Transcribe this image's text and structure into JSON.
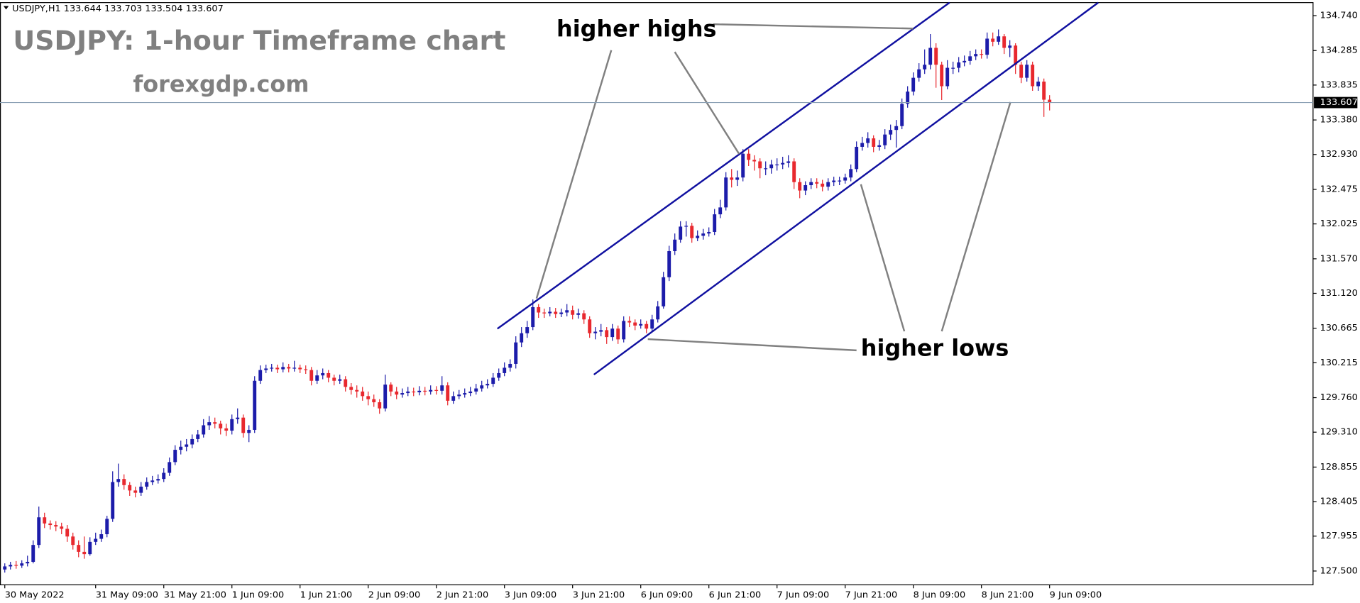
{
  "chart_data": {
    "type": "candlestick",
    "symbol": "USDJPY,H1",
    "title": "USDJPY: 1-hour Timeframe chart",
    "subtitle": "forexgdp.com",
    "annotations": [
      "higher highs",
      "higher lows"
    ],
    "up_color": "#1c1caa",
    "down_color": "#e8282e",
    "ylim": [
      127.32,
      134.91
    ],
    "yticks": [
      {
        "value": 134.74,
        "label": "134.740"
      },
      134.285,
      133.835,
      {
        "value": 133.38,
        "label": "133.380"
      },
      {
        "value": 132.93,
        "label": "132.930"
      },
      132.475,
      132.025,
      {
        "value": 131.57,
        "label": "131.570"
      },
      {
        "value": 131.12,
        "label": "131.120"
      },
      130.665,
      130.215,
      {
        "value": 129.76,
        "label": "129.760"
      },
      {
        "value": 129.31,
        "label": "129.310"
      },
      128.855,
      128.405,
      127.955,
      {
        "value": 127.5,
        "label": "127.500"
      }
    ],
    "categories": [
      "30 May 2022",
      null,
      null,
      null,
      null,
      null,
      null,
      null,
      null,
      null,
      null,
      null,
      null,
      null,
      null,
      null,
      "31 May 09:00",
      null,
      null,
      null,
      null,
      null,
      null,
      null,
      null,
      null,
      null,
      null,
      "31 May 21:00",
      null,
      null,
      null,
      null,
      null,
      null,
      null,
      null,
      null,
      null,
      null,
      "1 Jun 09:00",
      null,
      null,
      null,
      null,
      null,
      null,
      null,
      null,
      null,
      null,
      null,
      "1 Jun 21:00",
      null,
      null,
      null,
      null,
      null,
      null,
      null,
      null,
      null,
      null,
      null,
      "2 Jun 09:00",
      null,
      null,
      null,
      null,
      null,
      null,
      null,
      null,
      null,
      null,
      null,
      "2 Jun 21:00",
      null,
      null,
      null,
      null,
      null,
      null,
      null,
      null,
      null,
      null,
      null,
      "3 Jun 09:00",
      null,
      null,
      null,
      null,
      null,
      null,
      null,
      null,
      null,
      null,
      null,
      "3 Jun 21:00",
      null,
      null,
      null,
      null,
      null,
      null,
      null,
      null,
      null,
      null,
      null,
      "6 Jun 09:00",
      null,
      null,
      null,
      null,
      null,
      null,
      null,
      null,
      null,
      null,
      null,
      "6 Jun 21:00",
      null,
      null,
      null,
      null,
      null,
      null,
      null,
      null,
      null,
      null,
      null,
      "7 Jun 09:00",
      null,
      null,
      null,
      null,
      null,
      null,
      null,
      null,
      null,
      null,
      null,
      "7 Jun 21:00",
      null,
      null,
      null,
      null,
      null,
      null,
      null,
      null,
      null,
      null,
      null,
      "8 Jun 09:00",
      null,
      null,
      null,
      null,
      null,
      null,
      null,
      null,
      null,
      null,
      null,
      "8 Jun 21:00",
      null,
      null,
      null,
      null,
      null,
      null,
      null,
      null,
      null,
      null,
      null,
      "9 Jun 09:00"
    ],
    "open": [
      127.52,
      127.56,
      127.58,
      127.57,
      127.6,
      127.62,
      127.84,
      128.2,
      128.12,
      128.1,
      128.08,
      128.05,
      127.95,
      127.84,
      127.75,
      127.72,
      127.88,
      127.92,
      127.98,
      128.18,
      128.66,
      128.7,
      128.62,
      128.55,
      128.52,
      128.6,
      128.66,
      128.68,
      128.7,
      128.78,
      128.92,
      129.08,
      129.12,
      129.15,
      129.22,
      129.28,
      129.4,
      129.44,
      129.42,
      129.36,
      129.33,
      129.48,
      129.5,
      129.3,
      129.34,
      129.98,
      130.12,
      130.14,
      130.15,
      130.13,
      130.16,
      130.14,
      130.15,
      130.13,
      130.12,
      129.98,
      130.05,
      130.08,
      130.02,
      129.98,
      130.0,
      129.9,
      129.86,
      129.84,
      129.78,
      129.74,
      129.7,
      129.62,
      129.93,
      129.84,
      129.8,
      129.82,
      129.84,
      129.83,
      129.85,
      129.84,
      129.86,
      129.85,
      129.92,
      129.72,
      129.78,
      129.8,
      129.82,
      129.84,
      129.88,
      129.92,
      129.94,
      130.02,
      130.08,
      130.15,
      130.2,
      130.48,
      130.6,
      130.68,
      130.94,
      130.87,
      130.86,
      130.88,
      130.85,
      130.87,
      130.9,
      130.84,
      130.86,
      130.78,
      130.6,
      130.62,
      130.64,
      130.55,
      130.66,
      130.52,
      130.76,
      130.74,
      130.7,
      130.72,
      130.66,
      130.78,
      130.95,
      131.33,
      131.67,
      131.82,
      131.99,
      132.0,
      131.84,
      131.87,
      131.9,
      131.92,
      132.15,
      132.24,
      132.63,
      132.6,
      132.63,
      132.94,
      132.86,
      132.84,
      132.75,
      132.75,
      132.8,
      132.8,
      132.82,
      132.84,
      132.57,
      132.46,
      132.53,
      132.57,
      132.55,
      132.51,
      132.57,
      132.59,
      132.59,
      132.63,
      132.74,
      133.03,
      133.08,
      133.14,
      133.03,
      133.05,
      133.19,
      133.25,
      133.3,
      133.59,
      133.75,
      133.93,
      134.04,
      134.1,
      134.32,
      134.1,
      133.82,
      134.06,
      134.06,
      134.13,
      134.15,
      134.21,
      134.24,
      134.23,
      134.44,
      134.4,
      134.47,
      134.32,
      134.35,
      134.1,
      133.93,
      134.1,
      133.82,
      133.88,
      133.644
    ],
    "high": [
      127.6,
      127.62,
      127.63,
      127.64,
      127.7,
      127.9,
      128.34,
      128.26,
      128.16,
      128.15,
      128.13,
      128.1,
      128.0,
      127.9,
      127.95,
      127.94,
      128.0,
      128.04,
      128.22,
      128.8,
      128.9,
      128.76,
      128.66,
      128.6,
      128.66,
      128.72,
      128.74,
      128.76,
      128.84,
      128.98,
      129.14,
      129.2,
      129.22,
      129.28,
      129.34,
      129.48,
      129.52,
      129.5,
      129.46,
      129.42,
      129.54,
      129.62,
      129.54,
      129.4,
      130.04,
      130.18,
      130.19,
      130.2,
      130.19,
      130.22,
      130.2,
      130.24,
      130.19,
      130.18,
      130.16,
      130.12,
      130.14,
      130.12,
      130.06,
      130.06,
      130.04,
      129.95,
      129.92,
      129.9,
      129.84,
      129.8,
      129.74,
      130.06,
      129.96,
      129.9,
      129.88,
      129.9,
      129.89,
      129.91,
      129.9,
      129.92,
      129.91,
      130.04,
      129.96,
      129.84,
      129.86,
      129.88,
      129.9,
      129.94,
      129.98,
      130.0,
      130.08,
      130.14,
      130.22,
      130.26,
      130.56,
      130.68,
      130.76,
      131.04,
      130.98,
      130.92,
      130.94,
      130.93,
      130.92,
      130.98,
      130.96,
      130.92,
      130.9,
      130.82,
      130.68,
      130.72,
      130.68,
      130.72,
      130.7,
      130.82,
      130.82,
      130.78,
      130.78,
      130.76,
      130.84,
      131.02,
      131.4,
      131.74,
      131.9,
      132.06,
      132.06,
      132.04,
      131.94,
      131.96,
      131.98,
      132.22,
      132.34,
      132.7,
      132.74,
      132.72,
      133.0,
      133.0,
      132.92,
      132.88,
      132.84,
      132.86,
      132.88,
      132.9,
      132.92,
      132.88,
      132.62,
      132.58,
      132.62,
      132.62,
      132.6,
      132.62,
      132.64,
      132.64,
      132.68,
      132.8,
      133.1,
      133.16,
      133.22,
      133.18,
      133.12,
      133.26,
      133.32,
      133.38,
      133.66,
      133.82,
      134.0,
      134.12,
      134.3,
      134.5,
      134.38,
      134.14,
      134.16,
      134.14,
      134.2,
      134.22,
      134.28,
      134.3,
      134.3,
      134.52,
      134.52,
      134.56,
      134.5,
      134.42,
      134.38,
      134.14,
      134.16,
      134.14,
      133.94,
      133.92,
      133.703
    ],
    "low": [
      127.48,
      127.52,
      127.53,
      127.54,
      127.56,
      127.6,
      127.8,
      128.06,
      128.04,
      128.02,
      127.98,
      127.88,
      127.78,
      127.68,
      127.66,
      127.7,
      127.84,
      127.88,
      127.94,
      128.14,
      128.6,
      128.56,
      128.48,
      128.46,
      128.48,
      128.56,
      128.62,
      128.64,
      128.66,
      128.74,
      128.88,
      129.02,
      129.06,
      129.1,
      129.18,
      129.24,
      129.34,
      129.36,
      129.28,
      129.26,
      129.28,
      129.42,
      129.24,
      129.18,
      129.3,
      129.94,
      130.08,
      130.1,
      130.08,
      130.09,
      130.09,
      130.1,
      130.08,
      130.07,
      129.92,
      129.94,
      130.0,
      129.96,
      129.92,
      129.94,
      129.84,
      129.8,
      129.76,
      129.72,
      129.66,
      129.64,
      129.55,
      129.58,
      129.78,
      129.74,
      129.76,
      129.78,
      129.78,
      129.79,
      129.79,
      129.8,
      129.8,
      129.8,
      129.66,
      129.68,
      129.74,
      129.76,
      129.78,
      129.8,
      129.84,
      129.88,
      129.9,
      129.98,
      130.04,
      130.1,
      130.14,
      130.42,
      130.54,
      130.64,
      130.8,
      130.8,
      130.82,
      130.8,
      130.81,
      130.82,
      130.78,
      130.79,
      130.72,
      130.54,
      130.52,
      130.56,
      130.46,
      130.5,
      130.46,
      130.48,
      130.68,
      130.64,
      130.66,
      130.6,
      130.62,
      130.74,
      130.92,
      131.28,
      131.62,
      131.78,
      131.86,
      131.78,
      131.8,
      131.82,
      131.86,
      131.88,
      132.1,
      132.2,
      132.5,
      132.52,
      132.58,
      132.78,
      132.72,
      132.62,
      132.66,
      132.68,
      132.72,
      132.74,
      132.76,
      132.48,
      132.36,
      132.4,
      132.48,
      132.49,
      132.45,
      132.46,
      132.52,
      132.53,
      132.55,
      132.58,
      132.7,
      132.98,
      133.02,
      132.96,
      132.98,
      133.0,
      133.12,
      133.02,
      133.26,
      133.54,
      133.7,
      133.88,
      133.98,
      134.04,
      133.8,
      133.64,
      133.78,
      133.98,
      134.0,
      134.08,
      134.1,
      134.16,
      134.18,
      134.18,
      134.34,
      134.36,
      134.24,
      134.2,
      133.98,
      133.86,
      133.88,
      133.76,
      133.76,
      133.42,
      133.504
    ],
    "close": [
      127.56,
      127.58,
      127.57,
      127.6,
      127.62,
      127.84,
      128.2,
      128.12,
      128.1,
      128.08,
      128.05,
      127.95,
      127.84,
      127.75,
      127.72,
      127.88,
      127.92,
      127.98,
      128.18,
      128.66,
      128.7,
      128.62,
      128.55,
      128.52,
      128.6,
      128.66,
      128.68,
      128.7,
      128.78,
      128.92,
      129.08,
      129.12,
      129.15,
      129.22,
      129.28,
      129.4,
      129.44,
      129.42,
      129.36,
      129.33,
      129.48,
      129.5,
      129.3,
      129.34,
      129.98,
      130.12,
      130.14,
      130.15,
      130.13,
      130.16,
      130.14,
      130.15,
      130.13,
      130.12,
      129.98,
      130.05,
      130.08,
      130.02,
      129.98,
      130.0,
      129.9,
      129.86,
      129.84,
      129.78,
      129.74,
      129.7,
      129.62,
      129.93,
      129.84,
      129.8,
      129.82,
      129.84,
      129.83,
      129.85,
      129.84,
      129.86,
      129.85,
      129.92,
      129.72,
      129.78,
      129.8,
      129.82,
      129.84,
      129.88,
      129.92,
      129.94,
      130.02,
      130.08,
      130.15,
      130.2,
      130.48,
      130.6,
      130.68,
      130.94,
      130.87,
      130.86,
      130.88,
      130.85,
      130.87,
      130.9,
      130.84,
      130.86,
      130.78,
      130.6,
      130.62,
      130.64,
      130.55,
      130.66,
      130.52,
      130.76,
      130.74,
      130.7,
      130.72,
      130.66,
      130.78,
      130.95,
      131.33,
      131.67,
      131.82,
      131.99,
      132.0,
      131.84,
      131.87,
      131.9,
      131.92,
      132.15,
      132.24,
      132.63,
      132.6,
      132.63,
      132.94,
      132.86,
      132.84,
      132.75,
      132.75,
      132.8,
      132.8,
      132.82,
      132.84,
      132.57,
      132.46,
      132.53,
      132.57,
      132.55,
      132.51,
      132.57,
      132.59,
      132.59,
      132.63,
      132.74,
      133.03,
      133.08,
      133.14,
      133.03,
      133.05,
      133.19,
      133.25,
      133.3,
      133.59,
      133.75,
      133.93,
      134.04,
      134.1,
      134.32,
      134.1,
      133.82,
      134.06,
      134.06,
      134.13,
      134.15,
      134.21,
      134.24,
      134.23,
      134.44,
      134.4,
      134.47,
      134.32,
      134.35,
      134.1,
      133.93,
      134.1,
      133.82,
      133.88,
      133.644,
      133.607
    ]
  }
}
